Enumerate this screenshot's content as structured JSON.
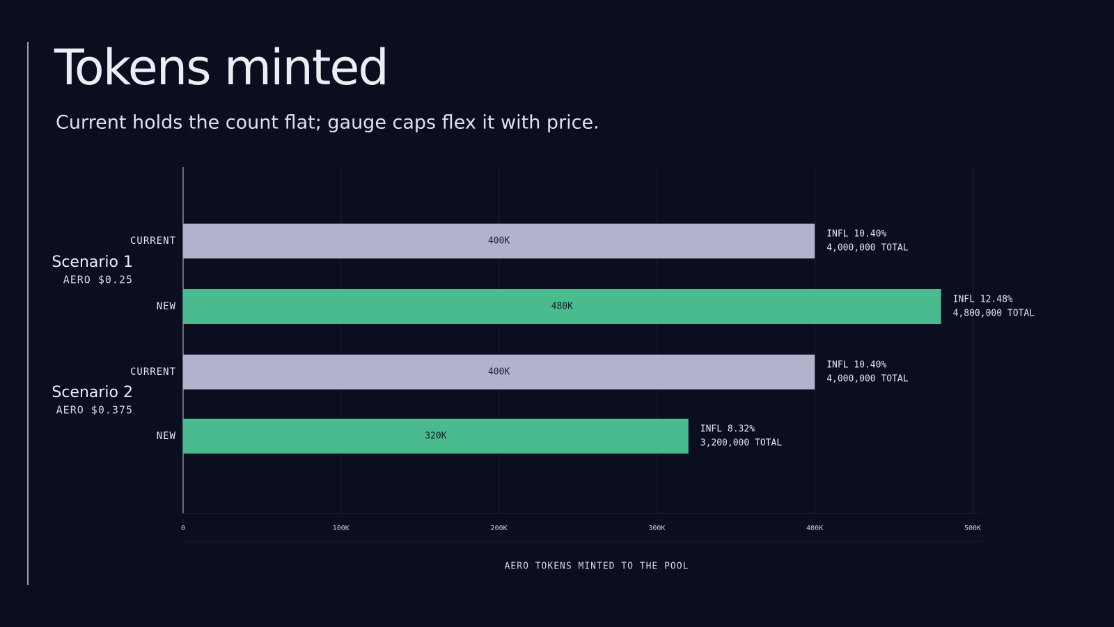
{
  "chart_data": {
    "type": "bar",
    "orientation": "horizontal",
    "title": "Tokens minted",
    "subtitle": "Current holds the count flat; gauge caps flex it with price.",
    "xlabel": "AERO TOKENS MINTED TO THE POOL",
    "groups": [
      {
        "name": "Scenario 1",
        "note": "AERO $0.25"
      },
      {
        "name": "Scenario 2",
        "note": "AERO $0.375"
      }
    ],
    "categories": [
      "CURRENT",
      "NEW",
      "CURRENT",
      "NEW"
    ],
    "values": [
      400000,
      480000,
      400000,
      320000
    ],
    "value_labels": [
      "400K",
      "480K",
      "400K",
      "320K"
    ],
    "colors": [
      "#b1b3cc",
      "#4abb8f",
      "#b1b3cc",
      "#4abb8f"
    ],
    "annotations": [
      [
        "INFL 10.40%",
        "4,000,000 TOTAL"
      ],
      [
        "INFL 12.48%",
        "4,800,000 TOTAL"
      ],
      [
        "INFL 10.40%",
        "4,000,000 TOTAL"
      ],
      [
        "INFL 8.32%",
        "3,200,000 TOTAL"
      ]
    ],
    "xlim": [
      0,
      500000
    ],
    "xticks": [
      0,
      {
        "value": 100000,
        "label": "100K"
      },
      {
        "value": 200000,
        "label": "200K"
      },
      {
        "value": 300000,
        "label": "300K"
      },
      {
        "value": 400000,
        "label": "400K"
      },
      {
        "value": 500000,
        "label": "500K"
      }
    ],
    "grid": true
  }
}
